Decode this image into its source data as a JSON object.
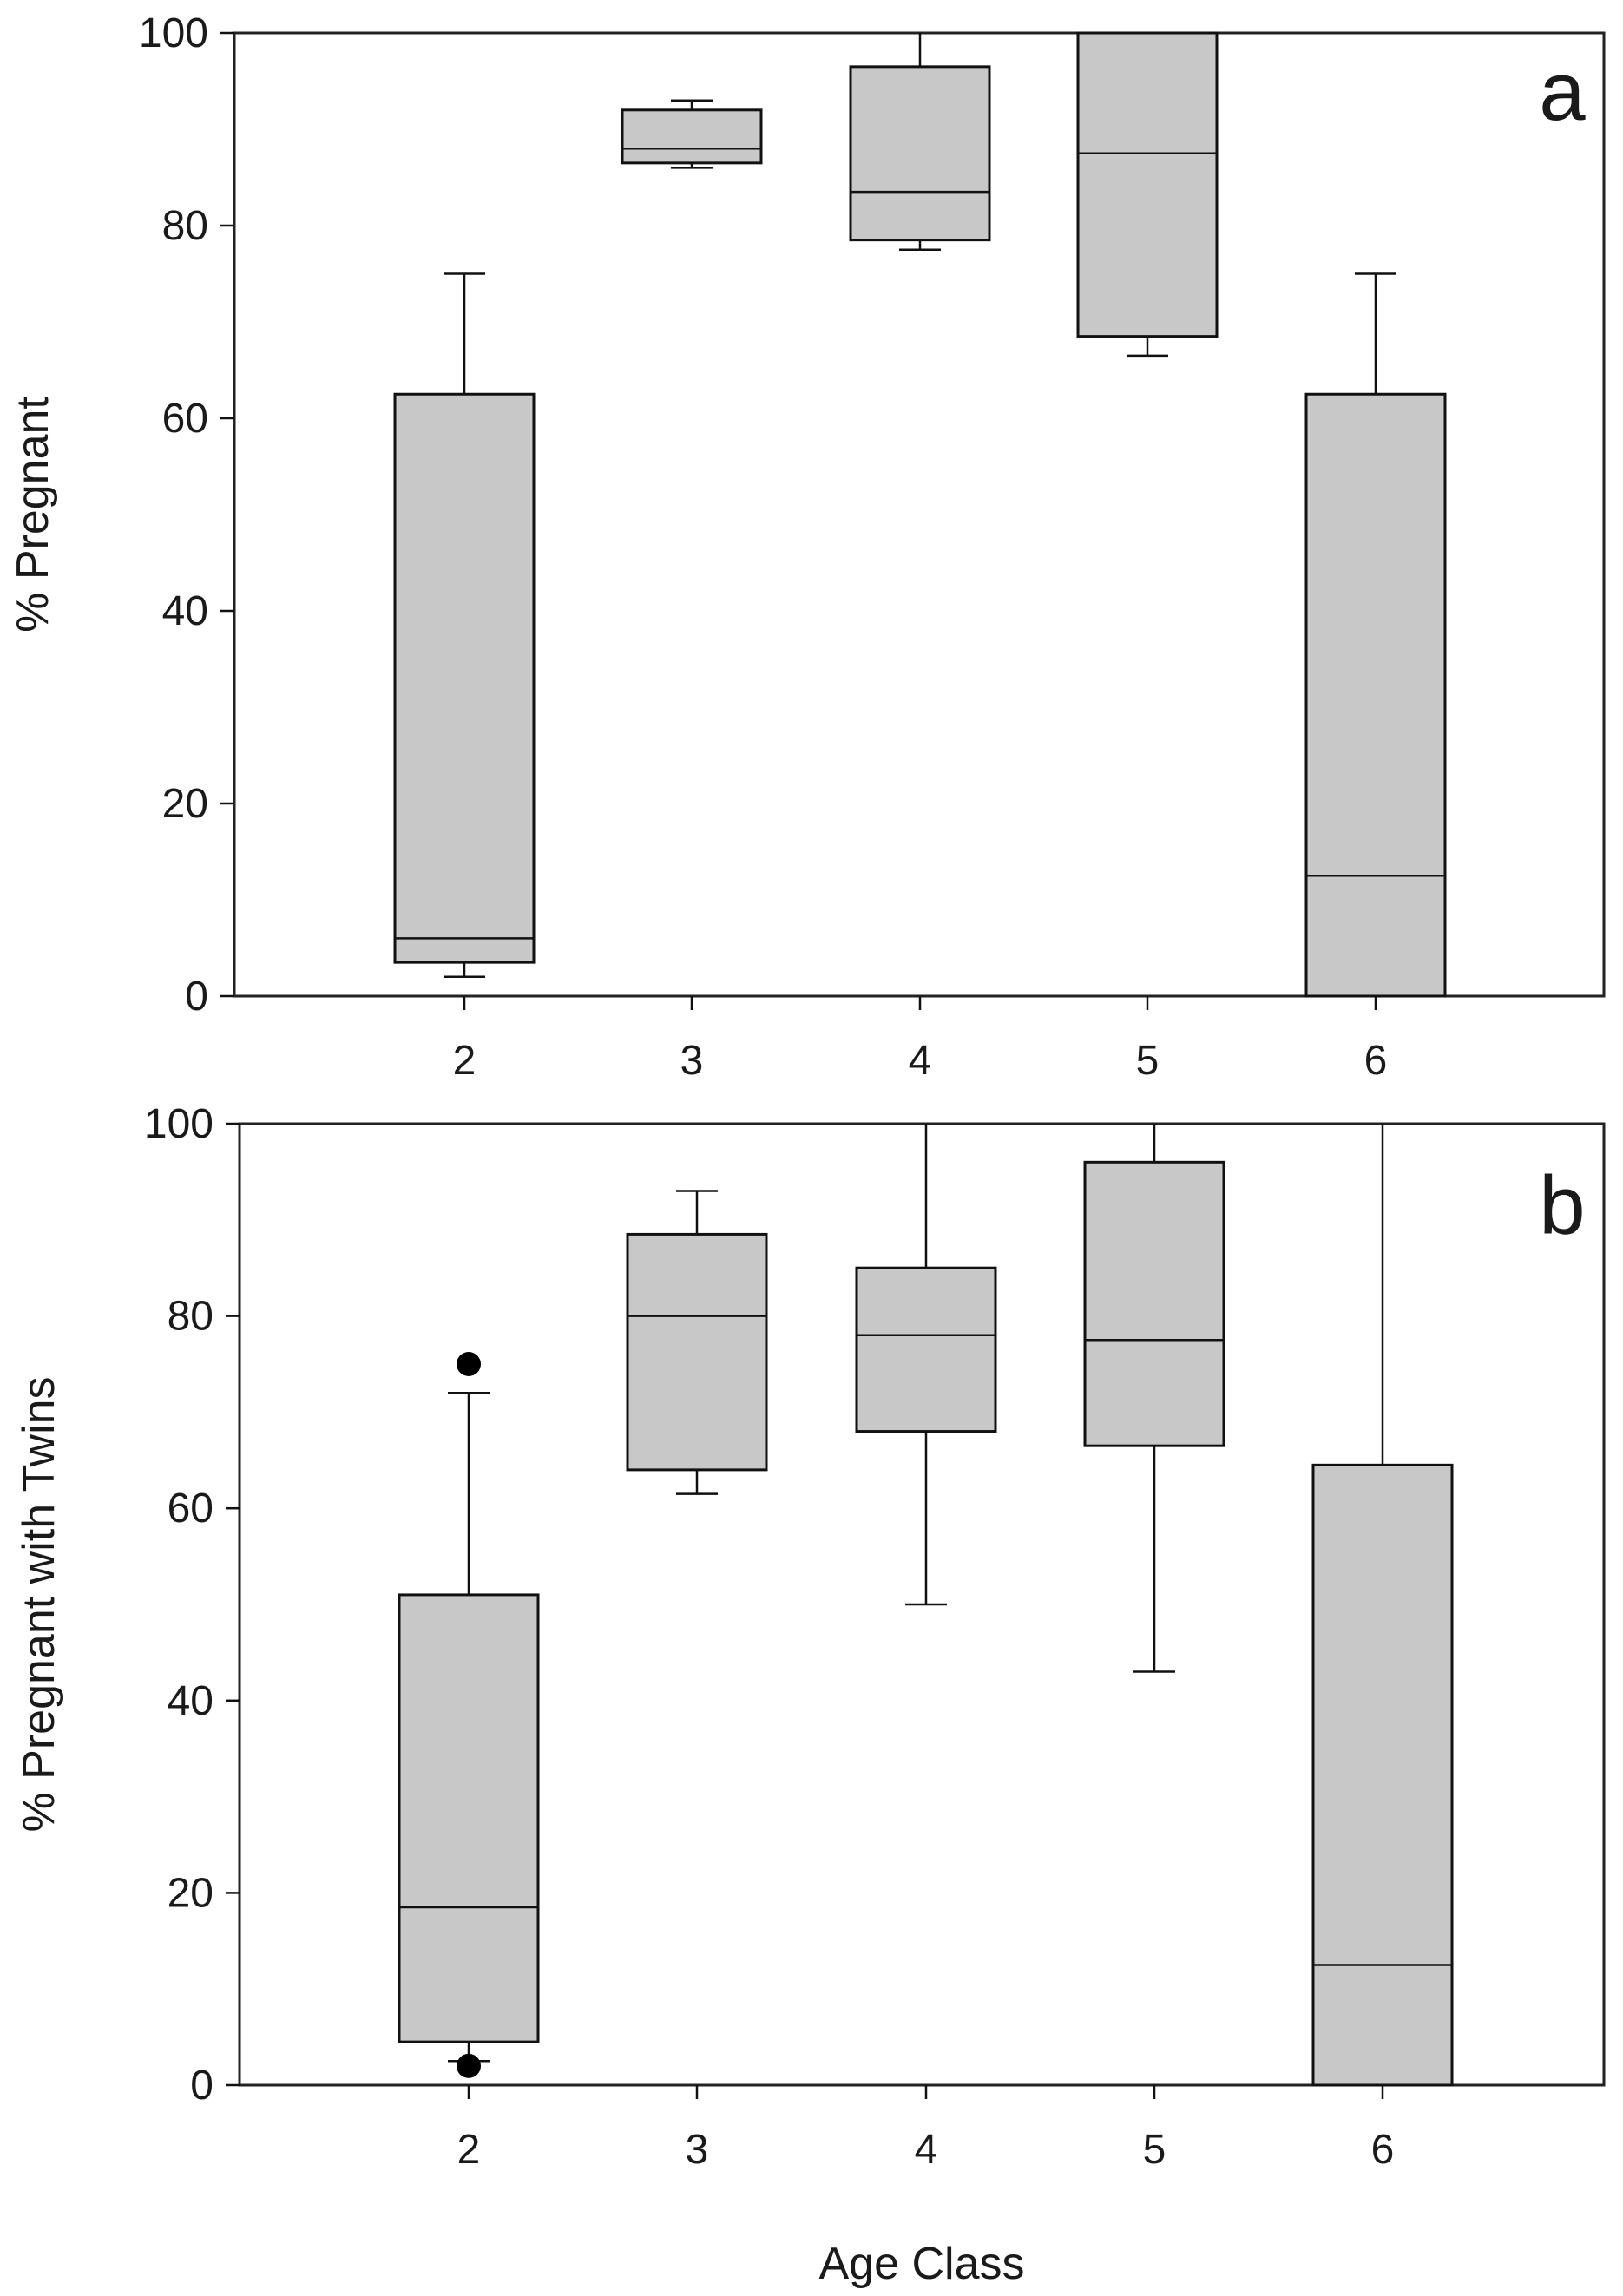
{
  "chart_data": [
    {
      "type": "box",
      "panel_label": "a",
      "xlabel": "",
      "ylabel": "% Pregnant",
      "ylim": [
        0,
        100
      ],
      "yticks": [
        0,
        20,
        40,
        60,
        80,
        100
      ],
      "categories": [
        "2",
        "3",
        "4",
        "5",
        "6"
      ],
      "boxes": [
        {
          "category": "2",
          "whisker_low": 2,
          "q1": 3.5,
          "median": 6,
          "q3": 62.5,
          "whisker_high": 75,
          "outliers": []
        },
        {
          "category": "3",
          "whisker_low": 86,
          "q1": 86.5,
          "median": 88,
          "q3": 92,
          "whisker_high": 93,
          "outliers": []
        },
        {
          "category": "4",
          "whisker_low": 77.5,
          "q1": 78.5,
          "median": 83.5,
          "q3": 96.5,
          "whisker_high": 100,
          "outliers": []
        },
        {
          "category": "5",
          "whisker_low": 66.5,
          "q1": 68.5,
          "median": 87.5,
          "q3": 100,
          "whisker_high": 100,
          "outliers": []
        },
        {
          "category": "6",
          "whisker_low": 0,
          "q1": 0,
          "median": 12.5,
          "q3": 62.5,
          "whisker_high": 75,
          "outliers": []
        }
      ]
    },
    {
      "type": "box",
      "panel_label": "b",
      "xlabel": "Age Class",
      "ylabel": "% Pregnant with Twins",
      "ylim": [
        0,
        100
      ],
      "yticks": [
        0,
        20,
        40,
        60,
        80,
        100
      ],
      "categories": [
        "2",
        "3",
        "4",
        "5",
        "6"
      ],
      "boxes": [
        {
          "category": "2",
          "whisker_low": 2.5,
          "q1": 4.5,
          "median": 18.5,
          "q3": 51,
          "whisker_high": 72,
          "outliers": [
            75,
            2
          ]
        },
        {
          "category": "3",
          "whisker_low": 61.5,
          "q1": 64,
          "median": 80,
          "q3": 88.5,
          "whisker_high": 93,
          "outliers": []
        },
        {
          "category": "4",
          "whisker_low": 50,
          "q1": 68,
          "median": 78,
          "q3": 85,
          "whisker_high": 100,
          "outliers": []
        },
        {
          "category": "5",
          "whisker_low": 43,
          "q1": 66.5,
          "median": 77.5,
          "q3": 96,
          "whisker_high": 100,
          "outliers": []
        },
        {
          "category": "6",
          "whisker_low": 0,
          "q1": 0,
          "median": 12.5,
          "q3": 64.5,
          "whisker_high": 100,
          "outliers": []
        }
      ]
    }
  ]
}
